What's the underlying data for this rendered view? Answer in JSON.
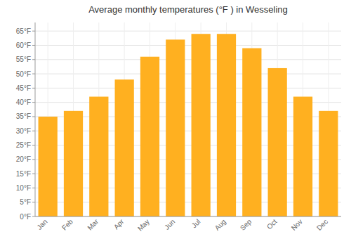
{
  "chart_data": {
    "type": "bar",
    "title": "Average monthly temperatures (°F ) in Wesseling",
    "categories": [
      "Jan",
      "Feb",
      "Mar",
      "Apr",
      "May",
      "Jun",
      "Jul",
      "Aug",
      "Sep",
      "Oct",
      "Nov",
      "Dec"
    ],
    "values": [
      35,
      37,
      42,
      48,
      56,
      62,
      64,
      64,
      59,
      52,
      42,
      37
    ],
    "color": "#FFB020",
    "ylim": [
      0,
      68
    ],
    "yticks": [
      {
        "value": 0,
        "label": "0°F"
      },
      {
        "value": 5,
        "label": "5°F"
      },
      {
        "value": 10,
        "label": "10°F"
      },
      {
        "value": 15,
        "label": "15°F"
      },
      {
        "value": 20,
        "label": "20°F"
      },
      {
        "value": 25,
        "label": "25°F"
      },
      {
        "value": 30,
        "label": "30°F"
      },
      {
        "value": 35,
        "label": "35°F"
      },
      {
        "value": 40,
        "label": "40°F"
      },
      {
        "value": 45,
        "label": "45°F"
      },
      {
        "value": 50,
        "label": "50°F"
      },
      {
        "value": 55,
        "label": "55°F"
      },
      {
        "value": 60,
        "label": "60°F"
      },
      {
        "value": 65,
        "label": "65°F"
      }
    ],
    "grid": true
  }
}
